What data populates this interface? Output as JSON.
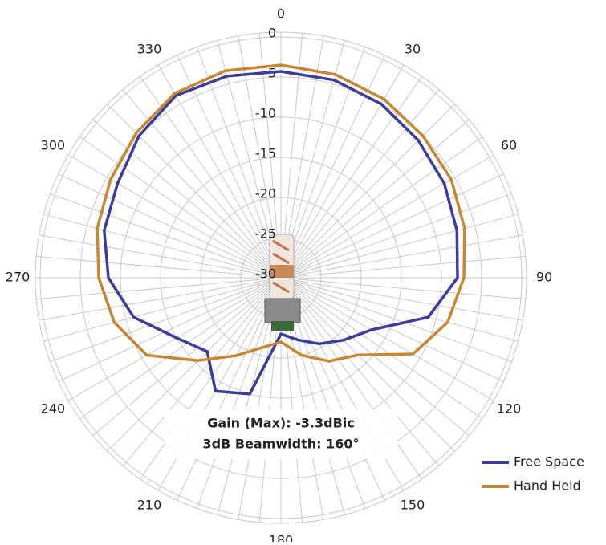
{
  "chart_data": {
    "type": "polar",
    "theta": [
      0,
      15,
      30,
      45,
      60,
      75,
      90,
      105,
      120,
      135,
      150,
      165,
      180,
      195,
      210,
      225,
      240,
      255,
      270,
      285,
      300,
      315,
      330,
      345
    ],
    "series": [
      {
        "name": "Free Space",
        "color": "#3b3c9c",
        "values": [
          -4.3,
          -4.5,
          -5,
          -5.8,
          -6.5,
          -7.3,
          -8,
          -11,
          -17,
          -19,
          -20.5,
          -22,
          -23,
          -15,
          -13.7,
          -17,
          -15,
          -11,
          -8.5,
          -7.2,
          -6.5,
          -5,
          -3.8,
          -4
        ]
      },
      {
        "name": "Hand Held",
        "color": "#c88632",
        "values": [
          -3.5,
          -3.8,
          -4.3,
          -5,
          -5.5,
          -6.3,
          -7.2,
          -8.5,
          -11,
          -16.4,
          -18,
          -20,
          -22,
          -21,
          -18.8,
          -15.4,
          -10.7,
          -8.5,
          -7.3,
          -6.3,
          -5.5,
          -4.5,
          -3.5,
          -3.3
        ]
      }
    ],
    "rlim": [
      -30,
      0
    ],
    "rticks": [
      0,
      -5,
      -10,
      -15,
      -20,
      -25,
      -30
    ],
    "angle_ticks": [
      0,
      30,
      60,
      90,
      120,
      150,
      180,
      210,
      240,
      270,
      300,
      330
    ],
    "direction": "clockwise",
    "annotations": [
      "Gain (Max):  -3.3dBic",
      "3dB Beamwidth:  160°"
    ],
    "legend": "lower right",
    "grid": true
  }
}
